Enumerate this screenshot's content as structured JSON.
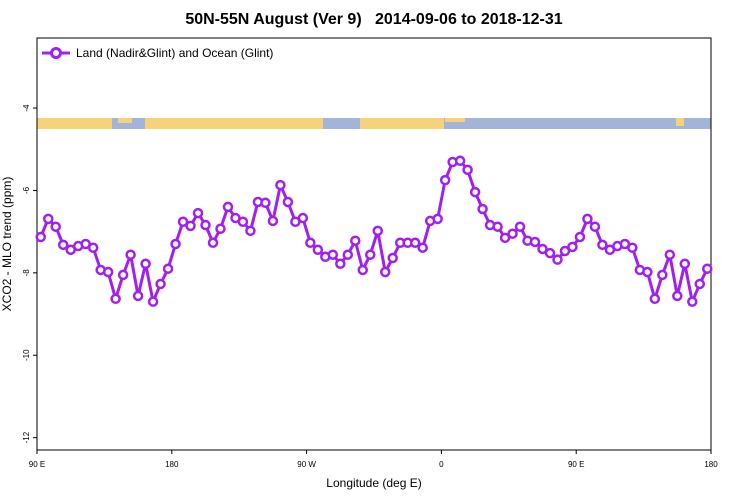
{
  "chart_data": {
    "type": "line",
    "title": "50N-55N August (Ver 9)   2014-09-06 to 2018-12-31",
    "x_label": "Longitude (deg E)",
    "y_label": "XCO2 - MLO trend (ppm)",
    "xlim": [
      90,
      540
    ],
    "ylim": [
      -12.3,
      -2.3
    ],
    "xticks": [
      {
        "value": 90,
        "label": "90 E"
      },
      180,
      {
        "value": 270,
        "label": "90 W"
      },
      {
        "value": 360,
        "label": "0"
      },
      {
        "value": 450,
        "label": "90 E"
      },
      {
        "value": 540,
        "label": "180"
      }
    ],
    "yticks": [
      -12,
      -10,
      -8,
      -6,
      -4
    ],
    "legend_position": "top-left",
    "x": [
      92.5,
      97.5,
      102.5,
      107.5,
      112.5,
      117.5,
      122.5,
      127.5,
      132.5,
      137.5,
      142.5,
      147.5,
      152.5,
      157.5,
      162.5,
      167.5,
      172.5,
      177.5,
      182.5,
      187.5,
      192.5,
      197.5,
      202.5,
      207.5,
      212.5,
      217.5,
      222.5,
      227.5,
      232.5,
      237.5,
      242.5,
      247.5,
      252.5,
      257.5,
      262.5,
      267.5,
      272.5,
      277.5,
      282.5,
      287.5,
      292.5,
      297.5,
      302.5,
      307.5,
      312.5,
      317.5,
      322.5,
      327.5,
      332.5,
      337.5,
      342.5,
      347.5,
      352.5,
      357.5,
      362.5,
      367.5,
      372.5,
      377.5,
      382.5,
      387.5,
      392.5,
      397.5,
      402.5,
      407.5,
      412.5,
      417.5,
      422.5,
      427.5,
      432.5,
      437.5,
      442.5,
      447.5,
      452.5,
      457.5,
      462.5,
      467.5,
      472.5,
      477.5,
      482.5,
      487.5,
      492.5,
      497.5,
      502.5,
      507.5,
      512.5,
      517.5,
      522.5,
      527.5,
      532.5,
      537.5
    ],
    "series": [
      {
        "name": "Land (Nadir&Glint) and Ocean (Glint)",
        "color": "#a020f0",
        "values": [
          -7.13,
          -6.69,
          -6.88,
          -7.32,
          -7.44,
          -7.35,
          -7.3,
          -7.39,
          -7.93,
          -7.98,
          -8.63,
          -8.05,
          -7.56,
          -8.56,
          -7.78,
          -8.7,
          -8.27,
          -7.9,
          -7.3,
          -6.76,
          -6.86,
          -6.55,
          -6.84,
          -7.27,
          -6.93,
          -6.4,
          -6.67,
          -6.76,
          -6.98,
          -6.28,
          -6.3,
          -6.74,
          -5.87,
          -6.28,
          -6.76,
          -6.67,
          -7.27,
          -7.44,
          -7.61,
          -7.56,
          -7.78,
          -7.56,
          -7.22,
          -7.93,
          -7.56,
          -6.98,
          -7.98,
          -7.64,
          -7.27,
          -7.27,
          -7.27,
          -7.39,
          -6.74,
          -6.69,
          -5.75,
          -5.31,
          -5.28,
          -5.5,
          -6.04,
          -6.45,
          -6.84,
          -6.88,
          -7.15,
          -7.05,
          -6.88,
          -7.22,
          -7.25,
          -7.42,
          -7.52,
          -7.68,
          -7.47,
          -7.37,
          -7.13,
          -6.69,
          -6.88,
          -7.32,
          -7.44,
          -7.35,
          -7.3,
          -7.39,
          -7.93,
          -7.98,
          -8.63,
          -8.05,
          -7.56,
          -8.56,
          -7.78,
          -8.7,
          -8.27,
          -7.9
        ]
      }
    ]
  }
}
